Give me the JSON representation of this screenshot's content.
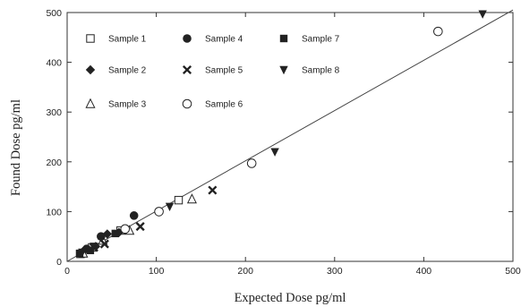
{
  "chart_data": {
    "type": "scatter",
    "xlabel": "Expected Dose pg/ml",
    "ylabel": "Found Dose pg/ml",
    "xlim": [
      0,
      500
    ],
    "ylim": [
      0,
      500
    ],
    "x_ticks": [
      0,
      100,
      200,
      300,
      400,
      500
    ],
    "y_ticks": [
      0,
      100,
      200,
      300,
      400,
      500
    ],
    "grid": false,
    "legend": "top-left",
    "series": [
      {
        "name": "Sample 1",
        "marker": "square-open",
        "points": [
          [
            15,
            15
          ],
          [
            28,
            28
          ],
          [
            60,
            62
          ],
          [
            125,
            123
          ]
        ]
      },
      {
        "name": "Sample 2",
        "marker": "diamond-filled",
        "points": [
          [
            20,
            24
          ],
          [
            32,
            30
          ],
          [
            45,
            55
          ],
          [
            58,
            58
          ]
        ]
      },
      {
        "name": "Sample 3",
        "marker": "triangle-up-open",
        "points": [
          [
            18,
            16
          ],
          [
            40,
            42
          ],
          [
            70,
            62
          ],
          [
            140,
            125
          ]
        ]
      },
      {
        "name": "Sample 4",
        "marker": "circle-filled",
        "points": [
          [
            22,
            25
          ],
          [
            38,
            50
          ],
          [
            75,
            92
          ]
        ]
      },
      {
        "name": "Sample 5",
        "marker": "x",
        "points": [
          [
            30,
            28
          ],
          [
            42,
            35
          ],
          [
            82,
            70
          ],
          [
            163,
            143
          ]
        ]
      },
      {
        "name": "Sample 6",
        "marker": "circle-open",
        "points": [
          [
            65,
            65
          ],
          [
            103,
            100
          ],
          [
            207,
            197
          ],
          [
            416,
            462
          ]
        ]
      },
      {
        "name": "Sample 7",
        "marker": "square-filled",
        "points": [
          [
            14,
            16
          ],
          [
            26,
            22
          ],
          [
            54,
            56
          ]
        ]
      },
      {
        "name": "Sample 8",
        "marker": "triangle-down-filled",
        "points": [
          [
            17,
            18
          ],
          [
            30,
            30
          ],
          [
            115,
            110
          ],
          [
            233,
            220
          ],
          [
            466,
            497
          ]
        ]
      }
    ],
    "fit_line": {
      "x": [
        0,
        500
      ],
      "y": [
        0,
        505
      ]
    }
  }
}
